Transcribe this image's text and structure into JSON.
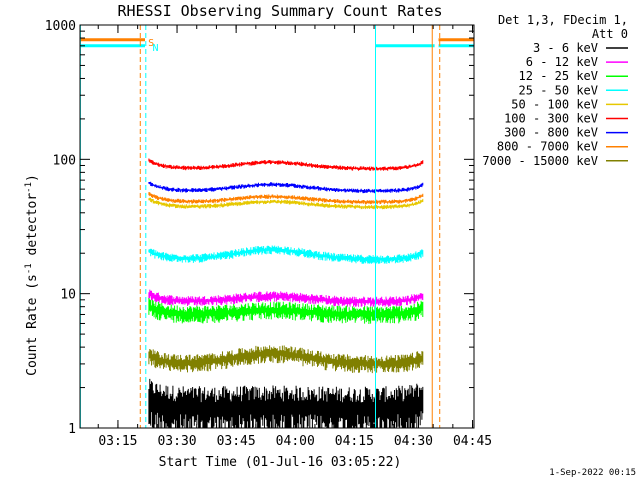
{
  "chart_data": {
    "type": "line",
    "title": "RHESSI Observing Summary Count Rates",
    "xlabel": "Start Time (01-Jul-16 03:05:22)",
    "ylabel_main": "Count Rate (s",
    "ylabel_sup1": "-1",
    "ylabel_mid": " detector",
    "ylabel_sup2": "-1",
    "ylabel_end": ")",
    "yscale": "log",
    "ylim": [
      1,
      1000
    ],
    "xlim_minutes": [
      0,
      100
    ],
    "y_ticks": [
      {
        "value": 1,
        "label": "1"
      },
      {
        "value": 10,
        "label": "10"
      },
      {
        "value": 100,
        "label": "100"
      },
      {
        "value": 1000,
        "label": "1000"
      }
    ],
    "x_ticks": [
      {
        "minute": 9.63,
        "label": "03:15"
      },
      {
        "minute": 24.63,
        "label": "03:30"
      },
      {
        "minute": 39.63,
        "label": "03:45"
      },
      {
        "minute": 54.63,
        "label": "04:00"
      },
      {
        "minute": 69.63,
        "label": "04:15"
      },
      {
        "minute": 84.63,
        "label": "04:30"
      },
      {
        "minute": 99.63,
        "label": "04:45"
      }
    ],
    "legend_header": [
      "Det 1,3, FDecim 1,",
      "Att 0"
    ],
    "series": [
      {
        "name": "3 - 6 keV",
        "color": "#000000",
        "base": 1.4,
        "noise": 0.35,
        "bump": 0.02
      },
      {
        "name": "6 - 12 keV",
        "color": "#ff00ff",
        "base": 8.7,
        "noise": 0.07,
        "bump": 0.1
      },
      {
        "name": "12 - 25 keV",
        "color": "#00ff00",
        "base": 7.0,
        "noise": 0.12,
        "bump": 0.08
      },
      {
        "name": "25 - 50 keV",
        "color": "#00ffff",
        "base": 18.0,
        "noise": 0.06,
        "bump": 0.18
      },
      {
        "name": "50 - 100 keV",
        "color": "#e6c800",
        "base": 44.0,
        "noise": 0.03,
        "bump": 0.1
      },
      {
        "name": "100 - 300 keV",
        "color": "#ff0000",
        "base": 85.0,
        "noise": 0.03,
        "bump": 0.12
      },
      {
        "name": "300 - 800 keV",
        "color": "#0000ff",
        "base": 58.0,
        "noise": 0.03,
        "bump": 0.12
      },
      {
        "name": "800 - 7000 keV",
        "color": "#ff8000",
        "base": 48.0,
        "noise": 0.03,
        "bump": 0.1
      },
      {
        "name": "7000 - 15000 keV",
        "color": "#808000",
        "base": 3.0,
        "noise": 0.12,
        "bump": 0.2
      }
    ],
    "data_interval_minutes": [
      17.5,
      87.0
    ],
    "saa_level": 700,
    "saa_intervals_minutes": [
      [
        0,
        16.5
      ],
      [
        75,
        90
      ],
      [
        91,
        100
      ]
    ],
    "vertical_lines": [
      {
        "minute": 0.1,
        "color": "#00ffff",
        "style": "solid"
      },
      {
        "minute": 15.3,
        "color": "#ff8000",
        "style": "dashed"
      },
      {
        "minute": 16.7,
        "color": "#00ffff",
        "style": "dashed"
      },
      {
        "minute": 75.0,
        "color": "#00ffff",
        "style": "solid"
      },
      {
        "minute": 89.4,
        "color": "#ff8000",
        "style": "solid"
      },
      {
        "minute": 91.3,
        "color": "#ff8000",
        "style": "dashed"
      }
    ],
    "markers": [
      {
        "text": "S",
        "color": "#ff8000",
        "minute": 17.3
      },
      {
        "text": "N",
        "color": "#00ffff",
        "minute": 18.4
      }
    ],
    "timestamp": "1-Sep-2022 00:15"
  }
}
